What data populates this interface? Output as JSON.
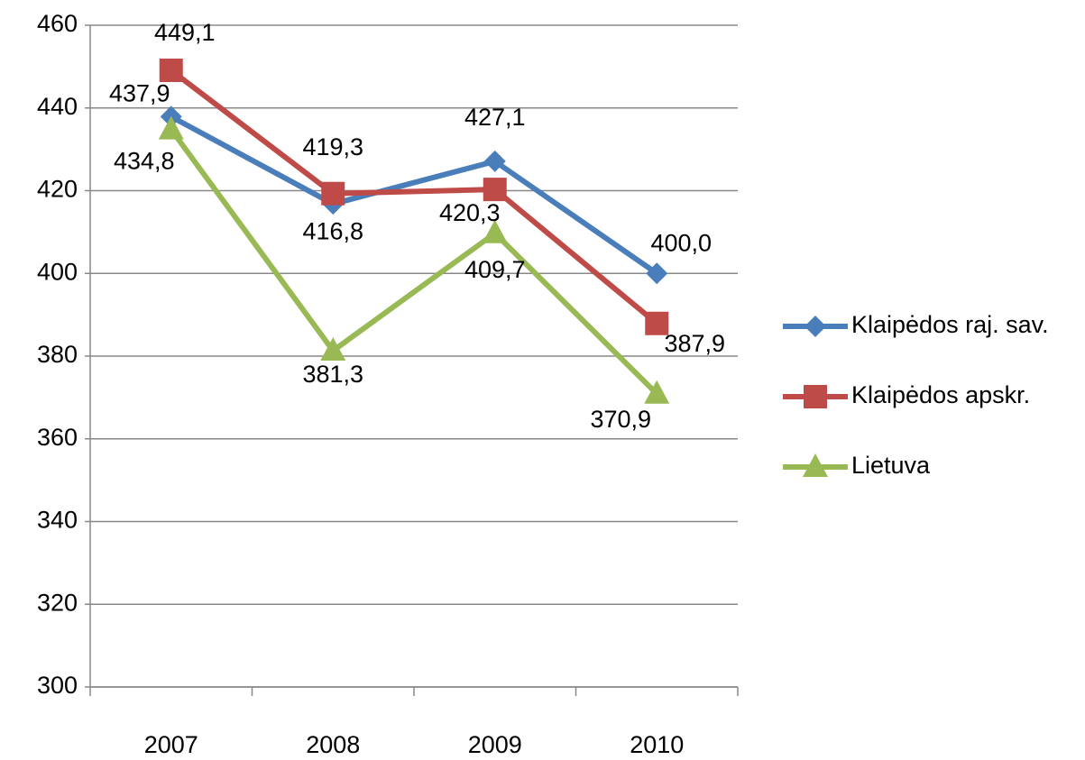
{
  "chart_data": {
    "type": "line",
    "categories": [
      "2007",
      "2008",
      "2009",
      "2010"
    ],
    "series": [
      {
        "name": "Klaipėdos raj. sav.",
        "color": "#4a7ebb",
        "marker": "diamond",
        "values": [
          437.9,
          416.8,
          427.1,
          400.0
        ],
        "value_labels": [
          "437,9",
          "416,8",
          "427,1",
          "400,0"
        ]
      },
      {
        "name": "Klaipėdos apskr.",
        "color": "#be4b48",
        "marker": "square",
        "values": [
          449.1,
          419.3,
          420.3,
          387.9
        ],
        "value_labels": [
          "449,1",
          "419,3",
          "420,3",
          "387,9"
        ]
      },
      {
        "name": "Lietuva",
        "color": "#98b954",
        "marker": "triangle",
        "values": [
          434.8,
          381.3,
          409.7,
          370.9
        ],
        "value_labels": [
          "434,8",
          "381,3",
          "409,7",
          "370,9"
        ]
      }
    ],
    "ylim": [
      300,
      460
    ],
    "yticks": [
      300,
      320,
      340,
      360,
      380,
      400,
      420,
      440,
      460
    ],
    "grid": true,
    "legend": "right"
  }
}
